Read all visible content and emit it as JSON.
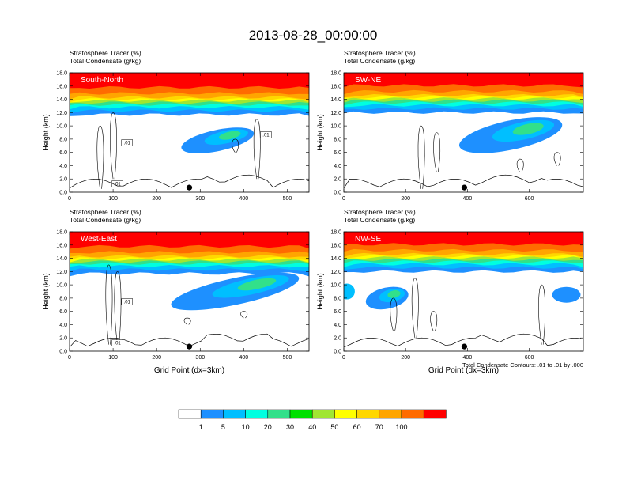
{
  "page_title": "2013-08-28_00:00:00",
  "chart_data": {
    "type": "heatmap",
    "panels": [
      {
        "label": "South-North",
        "field_titles": [
          "Stratosphere Tracer   (%)",
          "Total Condensate   (g/kg)"
        ],
        "ylabel": "Height (km)",
        "yticks": [
          "0.0",
          "2.0",
          "4.0",
          "6.0",
          "8.0",
          "10.0",
          "12.0",
          "14.0",
          "16.0",
          "18.0"
        ],
        "ylim": [
          0,
          18
        ],
        "xlim": [
          0,
          550
        ],
        "xticks": [
          "0",
          "100",
          "200",
          "300",
          "400",
          "500"
        ],
        "xtick_values": [
          0,
          100,
          200,
          300,
          400,
          500
        ],
        "marker_x": 275,
        "contour_labels": [
          ".01",
          ".01",
          ".01"
        ],
        "xlabel": ""
      },
      {
        "label": "SW-NE",
        "field_titles": [
          "Stratosphere Tracer   (%)",
          "Total Condensate   (g/kg)"
        ],
        "ylabel": "Height (km)",
        "yticks": [
          "0.0",
          "2.0",
          "4.0",
          "6.0",
          "8.0",
          "10.0",
          "12.0",
          "14.0",
          "16.0",
          "18.0"
        ],
        "ylim": [
          0,
          18
        ],
        "xlim": [
          0,
          775
        ],
        "xticks": [
          "0",
          "200",
          "400",
          "600"
        ],
        "xtick_values": [
          0,
          200,
          400,
          600
        ],
        "marker_x": 390,
        "contour_labels": [],
        "xlabel": ""
      },
      {
        "label": "West-East",
        "field_titles": [
          "Stratosphere Tracer   (%)",
          "Total Condensate   (g/kg)"
        ],
        "ylabel": "Height (km)",
        "yticks": [
          "0.0",
          "2.0",
          "4.0",
          "6.0",
          "8.0",
          "10.0",
          "12.0",
          "14.0",
          "16.0",
          "18.0"
        ],
        "ylim": [
          0,
          18
        ],
        "xlim": [
          0,
          550
        ],
        "xticks": [
          "0",
          "100",
          "200",
          "300",
          "400",
          "500"
        ],
        "xtick_values": [
          0,
          100,
          200,
          300,
          400,
          500
        ],
        "marker_x": 275,
        "contour_labels": [
          ".01",
          ".01"
        ],
        "xlabel": "Grid Point (dx=3km)"
      },
      {
        "label": "NW-SE",
        "field_titles": [
          "Stratosphere Tracer   (%)",
          "Total Condensate   (g/kg)"
        ],
        "ylabel": "Height (km)",
        "yticks": [
          "0.0",
          "2.0",
          "4.0",
          "6.0",
          "8.0",
          "10.0",
          "12.0",
          "14.0",
          "16.0",
          "18.0"
        ],
        "ylim": [
          0,
          18
        ],
        "xlim": [
          0,
          775
        ],
        "xticks": [
          "0",
          "200",
          "400",
          "600"
        ],
        "xtick_values": [
          0,
          200,
          400,
          600
        ],
        "marker_x": 390,
        "contour_labels": [],
        "xlabel": "Grid Point (dx=3km)"
      }
    ],
    "contour_note": "Total Condensate Contours: .01 to .01 by .000",
    "colorbar": {
      "labels": [
        "1",
        "5",
        "10",
        "20",
        "30",
        "40",
        "50",
        "60",
        "70",
        "100"
      ],
      "colors": [
        "#ffffff",
        "#1e90ff",
        "#00bfff",
        "#00ffe0",
        "#32e08a",
        "#00e000",
        "#a0e632",
        "#ffff00",
        "#ffd700",
        "#ffa500",
        "#ff6b00",
        "#ff0000"
      ]
    },
    "tracer_levels_km": [
      {
        "level": "100",
        "color": "#ff0000",
        "bottom_km": 15.8
      },
      {
        "level": "70",
        "color": "#ff6b00",
        "bottom_km": 14.9
      },
      {
        "level": "60",
        "color": "#ffa500",
        "bottom_km": 14.3
      },
      {
        "level": "50",
        "color": "#ffd700",
        "bottom_km": 14.0
      },
      {
        "level": "40",
        "color": "#ffff00",
        "bottom_km": 13.8
      },
      {
        "level": "30",
        "color": "#a0e632",
        "bottom_km": 13.5
      },
      {
        "level": "20",
        "color": "#32e08a",
        "bottom_km": 13.2
      },
      {
        "level": "10",
        "color": "#00ffe0",
        "bottom_km": 12.8
      },
      {
        "level": "5",
        "color": "#00bfff",
        "bottom_km": 12.3
      },
      {
        "level": "1",
        "color": "#1e90ff",
        "bottom_km": 11.7
      }
    ]
  }
}
